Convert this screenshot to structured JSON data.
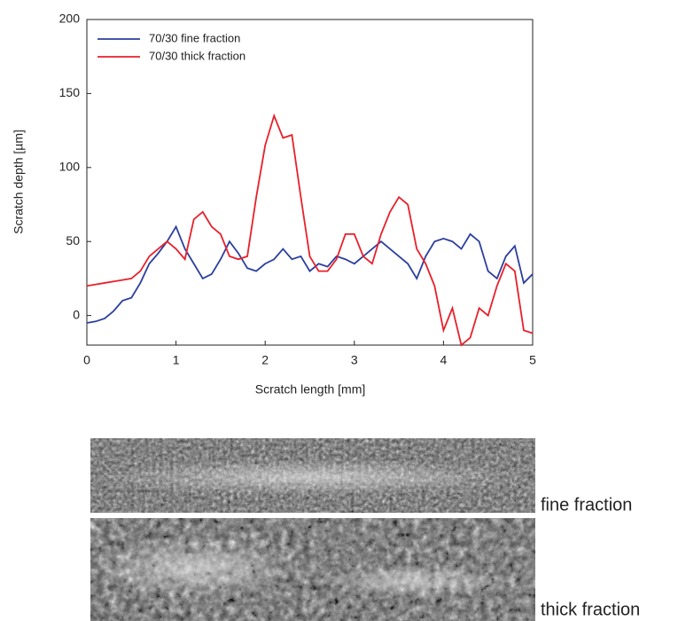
{
  "chart_data": {
    "type": "line",
    "x_label": "Scratch length [mm]",
    "y_label": "Scratch depth [µm]",
    "x": [
      0,
      0.1,
      0.2,
      0.3,
      0.4,
      0.5,
      0.6,
      0.7,
      0.8,
      0.9,
      1,
      1.1,
      1.2,
      1.3,
      1.4,
      1.5,
      1.6,
      1.7,
      1.8,
      1.9,
      2,
      2.1,
      2.2,
      2.3,
      2.4,
      2.5,
      2.6,
      2.7,
      2.8,
      2.9,
      3,
      3.1,
      3.2,
      3.3,
      3.4,
      3.5,
      3.6,
      3.7,
      3.8,
      3.9,
      4,
      4.1,
      4.2,
      4.3,
      4.4,
      4.5,
      4.6,
      4.7,
      4.8,
      4.9,
      5
    ],
    "series": [
      {
        "name": "70/30 fine fraction",
        "color": "#2b3f9e",
        "values": [
          -5,
          -4,
          -2,
          3,
          10,
          12,
          22,
          35,
          42,
          50,
          60,
          45,
          35,
          25,
          28,
          38,
          50,
          42,
          32,
          30,
          35,
          38,
          45,
          38,
          40,
          30,
          35,
          33,
          40,
          38,
          35,
          40,
          45,
          50,
          45,
          40,
          35,
          25,
          40,
          50,
          52,
          50,
          45,
          55,
          50,
          30,
          25,
          40,
          47,
          22,
          28
        ]
      },
      {
        "name": "70/30 thick fraction",
        "color": "#e8202a",
        "values": [
          20,
          21,
          22,
          23,
          24,
          25,
          30,
          40,
          45,
          50,
          45,
          38,
          65,
          70,
          60,
          55,
          40,
          38,
          40,
          80,
          115,
          135,
          120,
          122,
          80,
          40,
          30,
          30,
          38,
          55,
          55,
          40,
          35,
          55,
          70,
          80,
          75,
          45,
          35,
          20,
          -10,
          5,
          -20,
          -15,
          5,
          0,
          20,
          35,
          30,
          -10,
          -12
        ]
      }
    ],
    "xlim": [
      0,
      5
    ],
    "xticks": [
      0,
      1,
      2,
      3,
      4,
      5
    ],
    "ylim": [
      -20,
      200
    ],
    "yticks": [
      0,
      50,
      100,
      150,
      200
    ],
    "grid": false,
    "legend": "upper-left"
  },
  "micrographs": [
    "fine fraction",
    "thick fraction"
  ]
}
